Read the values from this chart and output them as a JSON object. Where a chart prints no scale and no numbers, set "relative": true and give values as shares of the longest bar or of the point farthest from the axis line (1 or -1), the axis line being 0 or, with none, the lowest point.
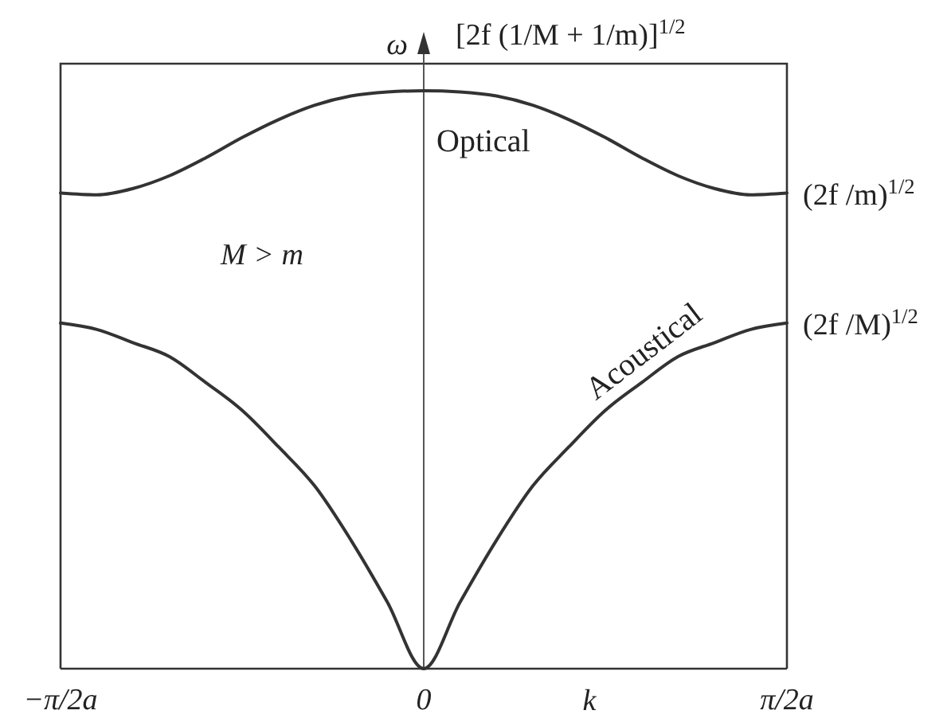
{
  "chart_data": {
    "type": "line",
    "relative": true,
    "xlabel": "k",
    "ylabel": "ω",
    "categories": [
      "−π/2a",
      null,
      null,
      null,
      null,
      null,
      null,
      null,
      null,
      null,
      "0",
      null,
      null,
      null,
      null,
      null,
      null,
      null,
      null,
      null,
      "π/2a"
    ],
    "series": [
      {
        "name": "Optical",
        "color": "#333333",
        "values": [
          0.823,
          0.82,
          0.831,
          0.853,
          0.884,
          0.919,
          0.95,
          0.975,
          0.991,
          0.998,
          1,
          0.998,
          0.991,
          0.975,
          0.95,
          0.919,
          0.884,
          0.853,
          0.831,
          0.82,
          0.823
        ]
      },
      {
        "name": "Acoustical",
        "color": "#333333",
        "values": [
          0.598,
          0.587,
          0.564,
          0.54,
          0.495,
          0.447,
          0.384,
          0.316,
          0.222,
          0.115,
          0,
          0.115,
          0.222,
          0.316,
          0.384,
          0.447,
          0.495,
          0.54,
          0.564,
          0.587,
          0.598
        ]
      }
    ],
    "annotations": [
      {
        "text": "[2f (1/M + 1/m)]$^{1/2}$",
        "x": "0",
        "y": 1
      },
      {
        "text": "(2f /m)$^{1/2}$",
        "x": "π/2a",
        "y": 0.823
      },
      {
        "text": "(2f /M)$^{1/2}$",
        "x": "π/2a",
        "y": 0.598
      },
      "M > m"
    ]
  }
}
